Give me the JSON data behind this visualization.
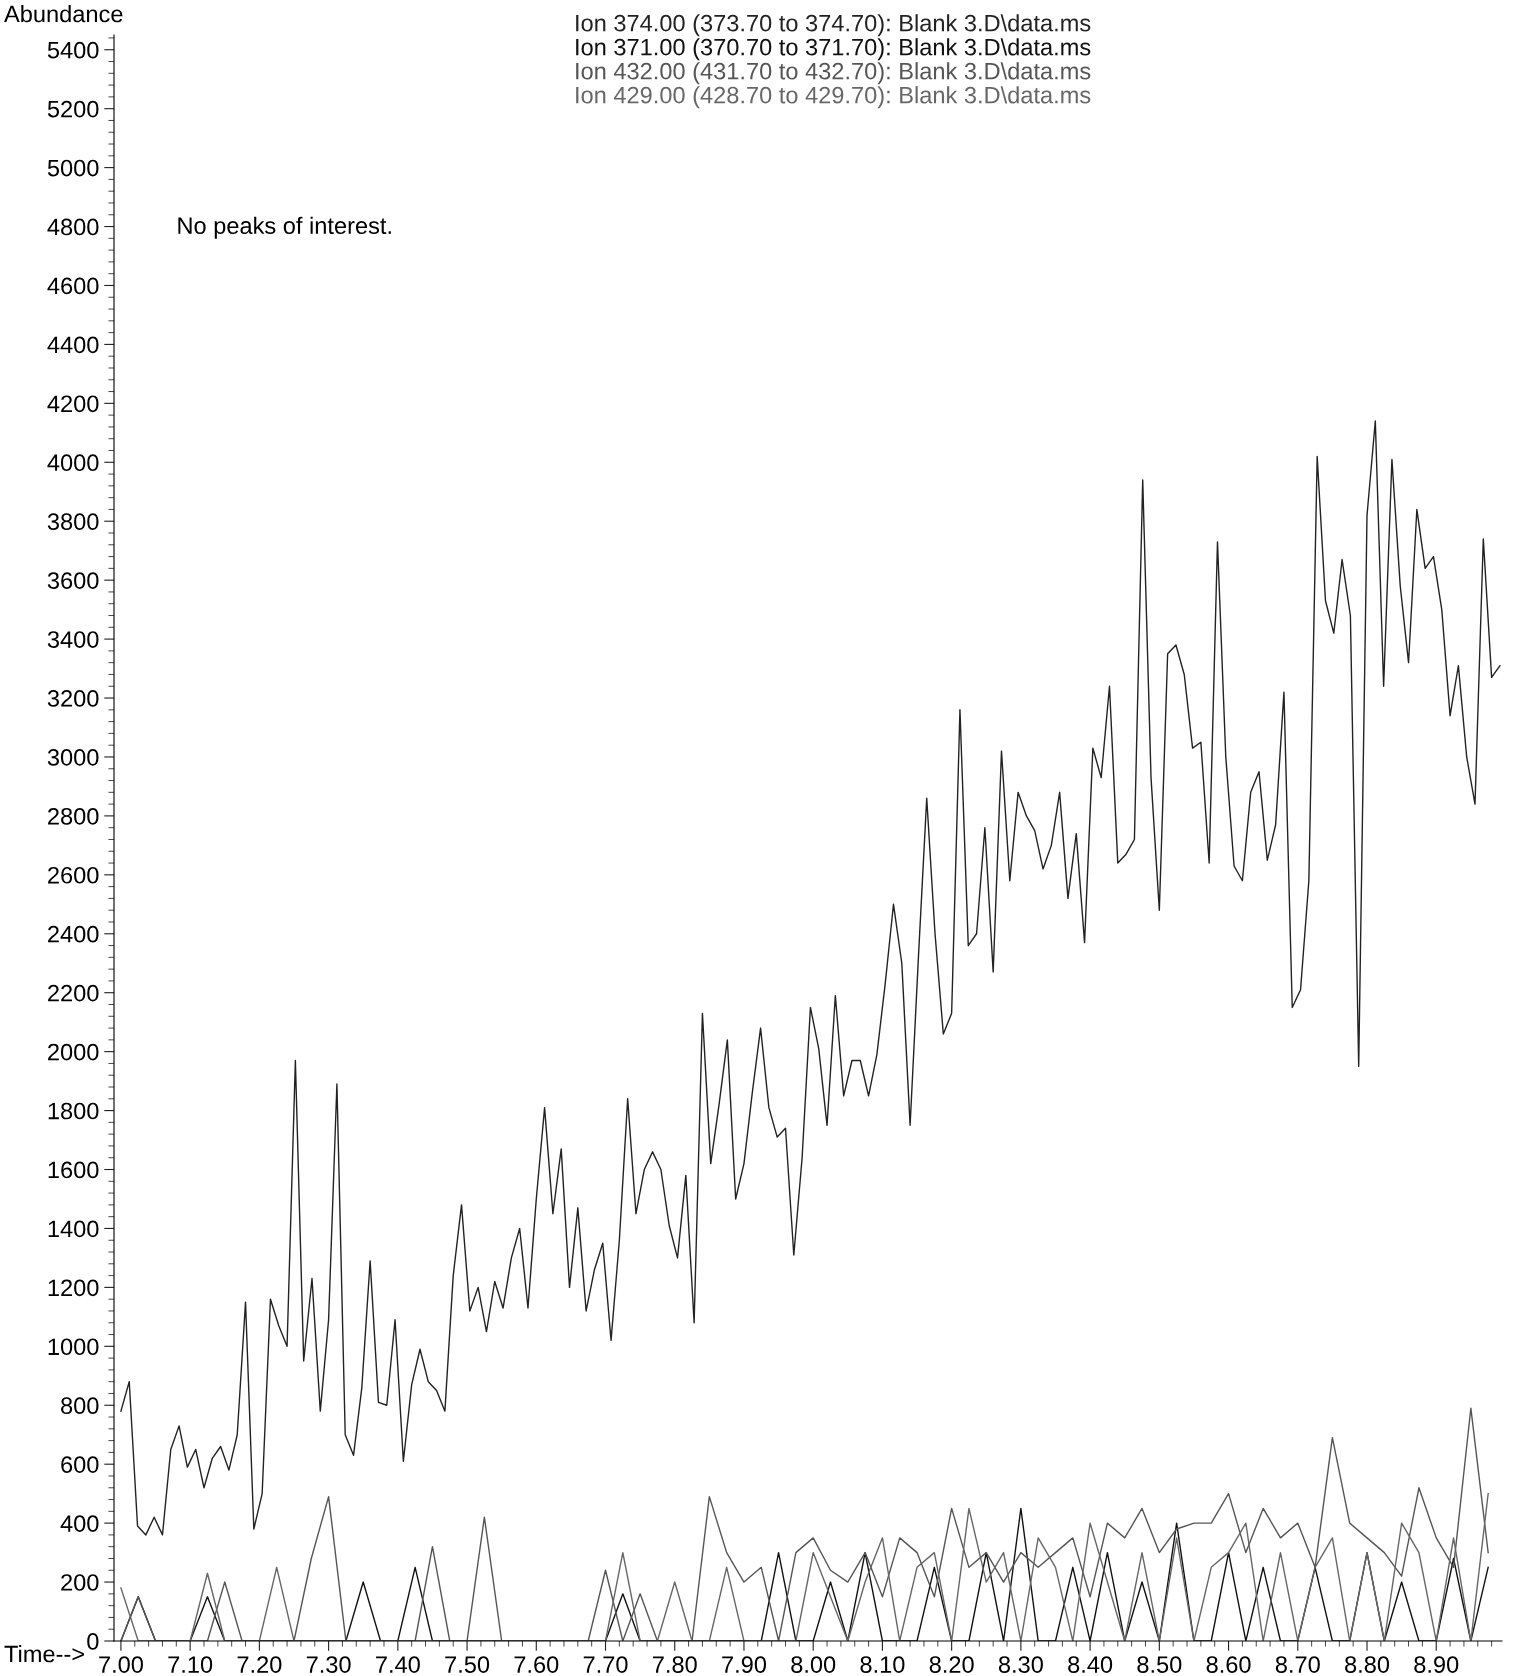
{
  "chart_data": {
    "type": "line",
    "xlabel": "Time-->",
    "ylabel": "Abundance",
    "annotations": [
      "No peaks of interest."
    ],
    "xlim": [
      6.99,
      8.995
    ],
    "ylim": [
      0,
      5450
    ],
    "xticks": [
      {
        "value": 7.0,
        "label": "7.00"
      },
      {
        "value": 7.1,
        "label": "7.10"
      },
      {
        "value": 7.2,
        "label": "7.20"
      },
      {
        "value": 7.3,
        "label": "7.30"
      },
      {
        "value": 7.4,
        "label": "7.40"
      },
      {
        "value": 7.5,
        "label": "7.50"
      },
      {
        "value": 7.6,
        "label": "7.60"
      },
      {
        "value": 7.7,
        "label": "7.70"
      },
      {
        "value": 7.8,
        "label": "7.80"
      },
      {
        "value": 7.9,
        "label": "7.90"
      },
      {
        "value": 8.0,
        "label": "8.00"
      },
      {
        "value": 8.1,
        "label": "8.10"
      },
      {
        "value": 8.2,
        "label": "8.20"
      },
      {
        "value": 8.3,
        "label": "8.30"
      },
      {
        "value": 8.4,
        "label": "8.40"
      },
      {
        "value": 8.5,
        "label": "8.50"
      },
      {
        "value": 8.6,
        "label": "8.60"
      },
      {
        "value": 8.7,
        "label": "8.70"
      },
      {
        "value": 8.8,
        "label": "8.80"
      },
      {
        "value": 8.9,
        "label": "8.90"
      }
    ],
    "yticks": [
      0,
      200,
      400,
      600,
      800,
      1000,
      1200,
      1400,
      1600,
      1800,
      2000,
      2200,
      2400,
      2600,
      2800,
      3000,
      3200,
      3400,
      3600,
      3800,
      4000,
      4200,
      4400,
      4600,
      4800,
      5000,
      5200,
      5400
    ],
    "grid": false,
    "legend": "top",
    "marker": "none",
    "line_style": "solid",
    "series": [
      {
        "name": "Ion 374.00 (373.70 to 374.70): Blank 3.D\\data.ms",
        "color": "#222222",
        "x": [
          7.0,
          7.012,
          7.024,
          7.036,
          7.048,
          7.06,
          7.072,
          7.084,
          7.096,
          7.108,
          7.12,
          7.132,
          7.144,
          7.156,
          7.168,
          7.18,
          7.192,
          7.204,
          7.216,
          7.228,
          7.24,
          7.252,
          7.264,
          7.276,
          7.288,
          7.3,
          7.312,
          7.324,
          7.336,
          7.348,
          7.36,
          7.372,
          7.384,
          7.396,
          7.408,
          7.42,
          7.432,
          7.444,
          7.456,
          7.468,
          7.48,
          7.492,
          7.504,
          7.516,
          7.528,
          7.54,
          7.552,
          7.564,
          7.576,
          7.588,
          7.6,
          7.612,
          7.624,
          7.636,
          7.648,
          7.66,
          7.672,
          7.684,
          7.696,
          7.708,
          7.72,
          7.732,
          7.744,
          7.756,
          7.768,
          7.78,
          7.792,
          7.804,
          7.816,
          7.828,
          7.84,
          7.852,
          7.864,
          7.876,
          7.888,
          7.9,
          7.912,
          7.924,
          7.936,
          7.948,
          7.96,
          7.972,
          7.984,
          7.996,
          8.008,
          8.02,
          8.032,
          8.044,
          8.056,
          8.068,
          8.08,
          8.092,
          8.104,
          8.116,
          8.128,
          8.14,
          8.152,
          8.164,
          8.176,
          8.188,
          8.2,
          8.212,
          8.224,
          8.236,
          8.248,
          8.26,
          8.272,
          8.284,
          8.296,
          8.308,
          8.32,
          8.332,
          8.344,
          8.356,
          8.368,
          8.38,
          8.392,
          8.404,
          8.416,
          8.428,
          8.44,
          8.452,
          8.464,
          8.476,
          8.488,
          8.5,
          8.512,
          8.524,
          8.536,
          8.548,
          8.56,
          8.572,
          8.584,
          8.596,
          8.608,
          8.62,
          8.632,
          8.644,
          8.656,
          8.668,
          8.68,
          8.692,
          8.704,
          8.716,
          8.728,
          8.74,
          8.752,
          8.764,
          8.776,
          8.788,
          8.8,
          8.812,
          8.824,
          8.836,
          8.848,
          8.86,
          8.872,
          8.884,
          8.896,
          8.908,
          8.92,
          8.932,
          8.944,
          8.956,
          8.968,
          8.98,
          8.992
        ],
        "values": [
          780,
          880,
          390,
          360,
          420,
          360,
          650,
          730,
          590,
          650,
          520,
          620,
          660,
          580,
          700,
          1150,
          380,
          500,
          1160,
          1070,
          1000,
          1970,
          950,
          1230,
          780,
          1090,
          1890,
          700,
          630,
          860,
          1290,
          810,
          800,
          1090,
          610,
          870,
          990,
          880,
          850,
          780,
          1240,
          1480,
          1120,
          1200,
          1050,
          1220,
          1130,
          1300,
          1400,
          1130,
          1500,
          1810,
          1450,
          1670,
          1200,
          1470,
          1120,
          1260,
          1350,
          1020,
          1360,
          1840,
          1450,
          1600,
          1660,
          1600,
          1410,
          1300,
          1580,
          1080,
          2130,
          1620,
          1820,
          2040,
          1500,
          1620,
          1860,
          2080,
          1810,
          1710,
          1740,
          1310,
          1640,
          2150,
          2010,
          1750,
          2190,
          1850,
          1970,
          1970,
          1850,
          1990,
          2230,
          2500,
          2300,
          1750,
          2320,
          2860,
          2400,
          2060,
          2130,
          3160,
          2360,
          2400,
          2760,
          2270,
          3020,
          2580,
          2880,
          2800,
          2750,
          2620,
          2700,
          2880,
          2520,
          2740,
          2370,
          3030,
          2930,
          3240,
          2640,
          2670,
          2720,
          3940,
          2930,
          2480,
          3350,
          3380,
          3280,
          3030,
          3050,
          2640,
          3730,
          3000,
          2630,
          2580,
          2880,
          2950,
          2650,
          2770,
          3220,
          2150,
          2210,
          2580,
          4020,
          3530,
          3420,
          3670,
          3480,
          1950,
          3820,
          4140,
          3240,
          4010,
          3580,
          3320,
          3840,
          3640,
          3680,
          3500,
          3140,
          3310,
          3000,
          2840,
          3740,
          3270,
          3310
        ]
      },
      {
        "name": "Ion 371.00 (370.70 to 371.70): Blank 3.D\\data.ms",
        "color": "#111111",
        "x": [
          7.0,
          7.025,
          7.05,
          7.075,
          7.1,
          7.125,
          7.15,
          7.175,
          7.2,
          7.225,
          7.25,
          7.275,
          7.3,
          7.325,
          7.35,
          7.375,
          7.4,
          7.425,
          7.45,
          7.475,
          7.5,
          7.525,
          7.55,
          7.575,
          7.6,
          7.625,
          7.65,
          7.675,
          7.7,
          7.725,
          7.75,
          7.775,
          7.8,
          7.825,
          7.85,
          7.875,
          7.9,
          7.925,
          7.95,
          7.975,
          8.0,
          8.025,
          8.05,
          8.075,
          8.1,
          8.125,
          8.15,
          8.175,
          8.2,
          8.225,
          8.25,
          8.275,
          8.3,
          8.325,
          8.35,
          8.375,
          8.4,
          8.425,
          8.45,
          8.475,
          8.5,
          8.525,
          8.55,
          8.575,
          8.6,
          8.625,
          8.65,
          8.675,
          8.7,
          8.725,
          8.75,
          8.775,
          8.8,
          8.825,
          8.85,
          8.875,
          8.9,
          8.925,
          8.95,
          8.975
        ],
        "values": [
          0,
          150,
          0,
          0,
          0,
          150,
          0,
          0,
          0,
          0,
          0,
          0,
          0,
          0,
          200,
          0,
          0,
          250,
          0,
          0,
          0,
          0,
          0,
          0,
          0,
          0,
          0,
          0,
          0,
          160,
          0,
          0,
          0,
          0,
          0,
          0,
          0,
          0,
          300,
          0,
          0,
          200,
          0,
          300,
          0,
          0,
          0,
          250,
          0,
          0,
          300,
          0,
          450,
          0,
          0,
          250,
          0,
          300,
          0,
          200,
          0,
          400,
          0,
          0,
          300,
          0,
          250,
          0,
          0,
          250,
          0,
          0,
          300,
          0,
          200,
          0,
          0,
          280,
          0,
          250
        ]
      },
      {
        "name": "Ion 432.00 (431.70 to 432.70): Blank 3.D\\data.ms",
        "color": "#555555",
        "x": [
          7.0,
          7.025,
          7.05,
          7.075,
          7.1,
          7.125,
          7.15,
          7.175,
          7.2,
          7.225,
          7.25,
          7.275,
          7.3,
          7.325,
          7.35,
          7.375,
          7.4,
          7.425,
          7.45,
          7.475,
          7.5,
          7.525,
          7.55,
          7.575,
          7.6,
          7.625,
          7.65,
          7.675,
          7.7,
          7.725,
          7.75,
          7.775,
          7.8,
          7.825,
          7.85,
          7.875,
          7.9,
          7.925,
          7.95,
          7.975,
          8.0,
          8.025,
          8.05,
          8.075,
          8.1,
          8.125,
          8.15,
          8.175,
          8.2,
          8.225,
          8.25,
          8.275,
          8.3,
          8.325,
          8.35,
          8.375,
          8.4,
          8.425,
          8.45,
          8.475,
          8.5,
          8.525,
          8.55,
          8.575,
          8.6,
          8.625,
          8.65,
          8.675,
          8.7,
          8.725,
          8.75,
          8.775,
          8.8,
          8.825,
          8.85,
          8.875,
          8.9,
          8.925,
          8.95,
          8.975
        ],
        "values": [
          0,
          150,
          0,
          0,
          0,
          0,
          200,
          0,
          0,
          0,
          0,
          280,
          490,
          0,
          0,
          0,
          0,
          0,
          320,
          0,
          0,
          420,
          0,
          0,
          0,
          0,
          0,
          0,
          240,
          0,
          160,
          0,
          0,
          0,
          490,
          300,
          200,
          250,
          0,
          300,
          350,
          240,
          200,
          300,
          150,
          350,
          300,
          150,
          450,
          250,
          300,
          200,
          300,
          250,
          300,
          350,
          150,
          400,
          350,
          450,
          300,
          380,
          400,
          400,
          500,
          300,
          450,
          350,
          400,
          250,
          690,
          400,
          350,
          300,
          220,
          520,
          350,
          250,
          790,
          300
        ]
      },
      {
        "name": "Ion 429.00 (428.70 to 429.70): Blank 3.D\\data.ms",
        "color": "#666666",
        "x": [
          7.0,
          7.025,
          7.05,
          7.075,
          7.1,
          7.125,
          7.15,
          7.175,
          7.2,
          7.225,
          7.25,
          7.275,
          7.3,
          7.325,
          7.35,
          7.375,
          7.4,
          7.425,
          7.45,
          7.475,
          7.5,
          7.525,
          7.55,
          7.575,
          7.6,
          7.625,
          7.65,
          7.675,
          7.7,
          7.725,
          7.75,
          7.775,
          7.8,
          7.825,
          7.85,
          7.875,
          7.9,
          7.925,
          7.95,
          7.975,
          8.0,
          8.025,
          8.05,
          8.075,
          8.1,
          8.125,
          8.15,
          8.175,
          8.2,
          8.225,
          8.25,
          8.275,
          8.3,
          8.325,
          8.35,
          8.375,
          8.4,
          8.425,
          8.45,
          8.475,
          8.5,
          8.525,
          8.55,
          8.575,
          8.6,
          8.625,
          8.65,
          8.675,
          8.7,
          8.725,
          8.75,
          8.775,
          8.8,
          8.825,
          8.85,
          8.875,
          8.9,
          8.925,
          8.95,
          8.975
        ],
        "values": [
          180,
          0,
          0,
          0,
          0,
          230,
          0,
          0,
          0,
          250,
          0,
          0,
          0,
          0,
          0,
          0,
          0,
          0,
          0,
          0,
          0,
          0,
          0,
          0,
          0,
          0,
          0,
          0,
          0,
          300,
          0,
          0,
          200,
          0,
          0,
          250,
          0,
          0,
          0,
          0,
          300,
          150,
          0,
          200,
          350,
          0,
          250,
          300,
          0,
          450,
          200,
          300,
          0,
          350,
          250,
          0,
          400,
          200,
          0,
          300,
          0,
          350,
          0,
          250,
          300,
          400,
          0,
          300,
          0,
          250,
          350,
          0,
          300,
          0,
          400,
          300,
          0,
          350,
          0,
          500
        ]
      }
    ]
  }
}
